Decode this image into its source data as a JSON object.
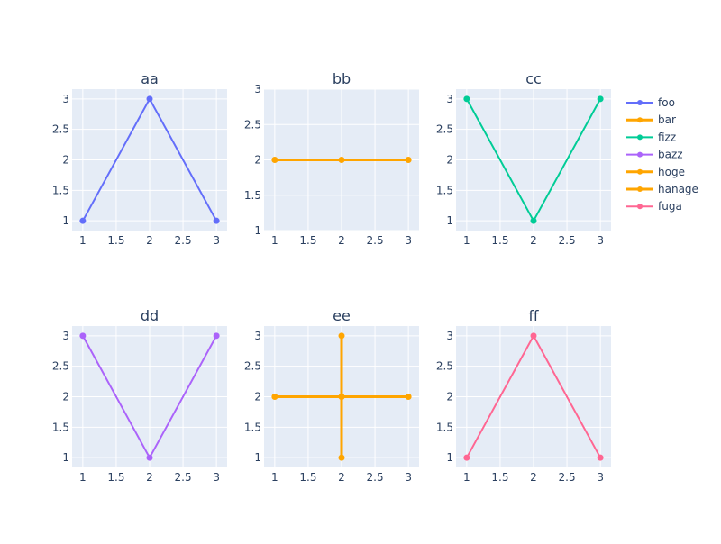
{
  "chart_data": {
    "type": "line",
    "layout": "subplots-2x3",
    "plot_bgcolor": "#e5ecf6",
    "paper_bgcolor": "#ffffff",
    "grid": true,
    "legend_position": "right",
    "subplots": [
      {
        "title": "aa",
        "row": 1,
        "col": 1,
        "xlim": [
          0.84,
          3.16
        ],
        "ylim": [
          0.84,
          3.16
        ],
        "xticks": [
          1,
          1.5,
          2,
          2.5,
          3
        ],
        "xtick_labels": [
          "1",
          "1.5",
          "2",
          "2.5",
          "3"
        ],
        "yticks": [
          1,
          1.5,
          2,
          2.5,
          3
        ],
        "ytick_labels": [
          "1",
          "1.5",
          "2",
          "2.5",
          "3"
        ],
        "series": [
          {
            "name": "foo",
            "x": [
              1,
              2,
              3
            ],
            "y": [
              1,
              3,
              1
            ],
            "color": "#636efa",
            "width": 2
          }
        ]
      },
      {
        "title": "bb",
        "row": 1,
        "col": 2,
        "xlim": [
          0.84,
          3.16
        ],
        "ylim": [
          1,
          3
        ],
        "xticks": [
          1,
          1.5,
          2,
          2.5,
          3
        ],
        "xtick_labels": [
          "1",
          "1.5",
          "2",
          "2.5",
          "3"
        ],
        "yticks": [
          1,
          1.5,
          2,
          2.5,
          3
        ],
        "ytick_labels": [
          "1",
          "1.5",
          "2",
          "2.5",
          "3"
        ],
        "series": [
          {
            "name": "bar",
            "x": [
              1,
              2,
              3
            ],
            "y": [
              2,
              2,
              2
            ],
            "color": "#ffa500",
            "width": 3
          }
        ]
      },
      {
        "title": "cc",
        "row": 1,
        "col": 3,
        "xlim": [
          0.84,
          3.16
        ],
        "ylim": [
          0.84,
          3.16
        ],
        "xticks": [
          1,
          1.5,
          2,
          2.5,
          3
        ],
        "xtick_labels": [
          "1",
          "1.5",
          "2",
          "2.5",
          "3"
        ],
        "yticks": [
          1,
          1.5,
          2,
          2.5,
          3
        ],
        "ytick_labels": [
          "1",
          "1.5",
          "2",
          "2.5",
          "3"
        ],
        "series": [
          {
            "name": "fizz",
            "x": [
              1,
              2,
              3
            ],
            "y": [
              3,
              1,
              3
            ],
            "color": "#00cc96",
            "width": 2
          }
        ]
      },
      {
        "title": "dd",
        "row": 2,
        "col": 1,
        "xlim": [
          0.84,
          3.16
        ],
        "ylim": [
          0.84,
          3.16
        ],
        "xticks": [
          1,
          1.5,
          2,
          2.5,
          3
        ],
        "xtick_labels": [
          "1",
          "1.5",
          "2",
          "2.5",
          "3"
        ],
        "yticks": [
          1,
          1.5,
          2,
          2.5,
          3
        ],
        "ytick_labels": [
          "1",
          "1.5",
          "2",
          "2.5",
          "3"
        ],
        "series": [
          {
            "name": "bazz",
            "x": [
              1,
              2,
              3
            ],
            "y": [
              3,
              1,
              3
            ],
            "color": "#ab63fa",
            "width": 2
          }
        ]
      },
      {
        "title": "ee",
        "row": 2,
        "col": 2,
        "xlim": [
          0.84,
          3.16
        ],
        "ylim": [
          0.84,
          3.16
        ],
        "xticks": [
          1,
          1.5,
          2,
          2.5,
          3
        ],
        "xtick_labels": [
          "1",
          "1.5",
          "2",
          "2.5",
          "3"
        ],
        "yticks": [
          1,
          1.5,
          2,
          2.5,
          3
        ],
        "ytick_labels": [
          "1",
          "1.5",
          "2",
          "2.5",
          "3"
        ],
        "series": [
          {
            "name": "hoge",
            "x": [
              1,
              2,
              3
            ],
            "y": [
              2,
              2,
              2
            ],
            "color": "#ffa500",
            "width": 3
          },
          {
            "name": "hanage",
            "x": [
              2,
              2,
              2
            ],
            "y": [
              1,
              2,
              3
            ],
            "color": "#ffa500",
            "width": 3
          }
        ]
      },
      {
        "title": "ff",
        "row": 2,
        "col": 3,
        "xlim": [
          0.84,
          3.16
        ],
        "ylim": [
          0.84,
          3.16
        ],
        "xticks": [
          1,
          1.5,
          2,
          2.5,
          3
        ],
        "xtick_labels": [
          "1",
          "1.5",
          "2",
          "2.5",
          "3"
        ],
        "yticks": [
          1,
          1.5,
          2,
          2.5,
          3
        ],
        "ytick_labels": [
          "1",
          "1.5",
          "2",
          "2.5",
          "3"
        ],
        "series": [
          {
            "name": "fuga",
            "x": [
              1,
              2,
              3
            ],
            "y": [
              1,
              3,
              1
            ],
            "color": "#ff6692",
            "width": 2
          }
        ]
      }
    ],
    "legend": [
      {
        "name": "foo",
        "color": "#636efa",
        "width": 2
      },
      {
        "name": "bar",
        "color": "#ffa500",
        "width": 3
      },
      {
        "name": "fizz",
        "color": "#00cc96",
        "width": 2
      },
      {
        "name": "bazz",
        "color": "#ab63fa",
        "width": 2
      },
      {
        "name": "hoge",
        "color": "#ffa500",
        "width": 3
      },
      {
        "name": "hanage",
        "color": "#ffa500",
        "width": 3
      },
      {
        "name": "fuga",
        "color": "#ff6692",
        "width": 2
      }
    ]
  }
}
